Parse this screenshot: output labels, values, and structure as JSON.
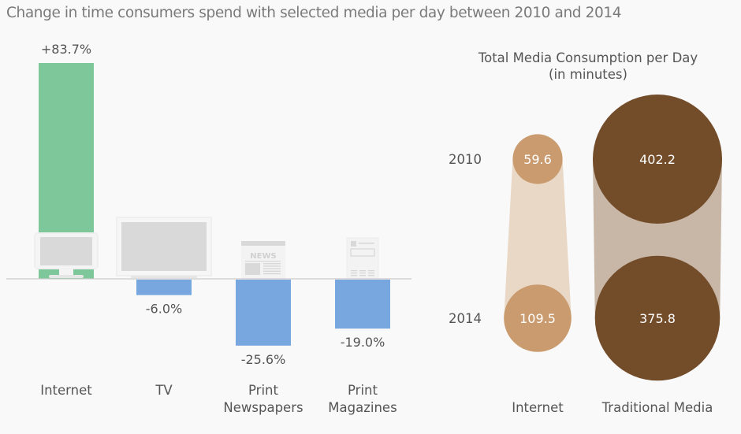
{
  "title": "Change in time consumers spend with selected media per day between 2010 and 2014",
  "colors": {
    "positive": "#7dc79a",
    "negative": "#78a6df",
    "icon_fill": "#d9d9d9",
    "icon_frame": "#efefef",
    "baseline": "#cccccc",
    "internet_bubble": "#c99b6e",
    "internet_band": "#ead8c6",
    "traditional_bubble": "#734c2a",
    "traditional_band": "#c8b7a6",
    "bubble_text": "#ffffff"
  },
  "chart_data": [
    {
      "type": "bar",
      "title": "Change in time consumers spend with selected media per day between 2010 and 2014",
      "categories": [
        "Internet",
        "TV",
        "Print Newspapers",
        "Print Magazines"
      ],
      "category_lines": [
        [
          "Internet"
        ],
        [
          "TV"
        ],
        [
          "Print",
          "Newspapers"
        ],
        [
          "Print",
          "Magazines"
        ]
      ],
      "values": [
        83.7,
        -6.0,
        -25.6,
        -19.0
      ],
      "value_labels": [
        "+83.7%",
        "-6.0%",
        "-25.6%",
        "-19.0%"
      ],
      "icons": [
        "monitor-icon",
        "tv-icon",
        "newspaper-icon",
        "magazine-icon"
      ],
      "icon_text": {
        "newspaper": "NEWS"
      },
      "unit": "%",
      "xlabel": "",
      "ylabel": "",
      "grid": false
    },
    {
      "type": "bubble",
      "title": "Total Media Consumption per Day",
      "subtitle": "(in minutes)",
      "rows": [
        "2010",
        "2014"
      ],
      "columns": [
        "Internet",
        "Traditional Media"
      ],
      "series": [
        {
          "name": "Internet",
          "values": [
            59.6,
            109.5
          ],
          "labels": [
            "59.6",
            "109.5"
          ]
        },
        {
          "name": "Traditional Media",
          "values": [
            402.2,
            375.8
          ],
          "labels": [
            "402.2",
            "375.8"
          ]
        }
      ],
      "unit": "minutes"
    }
  ]
}
